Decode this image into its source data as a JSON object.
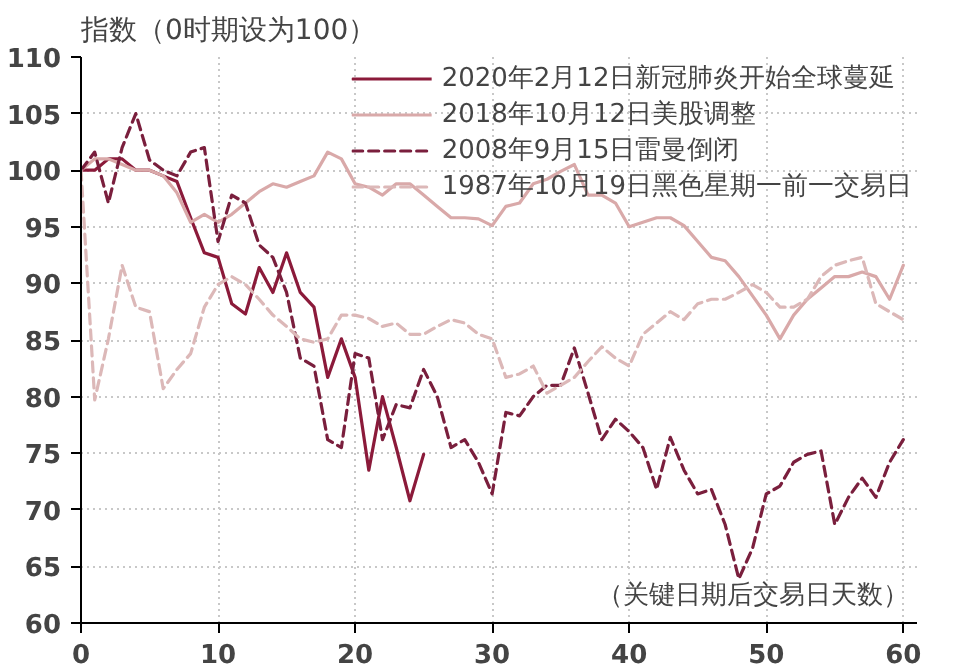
{
  "chart_data": {
    "type": "line",
    "title": "指数（0时期设为100）",
    "annotations": [
      "（关键日期后交易日天数）"
    ],
    "xlim": [
      0,
      61
    ],
    "xticks": [
      0,
      10,
      20,
      30,
      40,
      50,
      60
    ],
    "ylim": [
      60,
      110
    ],
    "yticks": [
      60,
      65,
      70,
      75,
      80,
      85,
      90,
      95,
      100,
      105,
      110
    ],
    "grid": true,
    "legend": "top right",
    "series": [
      {
        "name": "2020年2月12日新冠肺炎开始全球蔓延",
        "color": "#8b1a3a",
        "line_style": "solid",
        "x": [
          0,
          1,
          2,
          3,
          4,
          5,
          6,
          7,
          8,
          9,
          10,
          11,
          12,
          13,
          14,
          15,
          16,
          17,
          18,
          19,
          20,
          21,
          22,
          23,
          24,
          25
        ],
        "values": [
          100,
          100,
          101,
          101,
          100,
          100,
          99.5,
          99,
          95.8,
          92.7,
          92.3,
          88.2,
          87.3,
          91.4,
          89.2,
          92.7,
          89.2,
          87.9,
          81.7,
          85.1,
          81.7,
          73.5,
          80,
          75.5,
          70.8,
          74.9
        ]
      },
      {
        "name": "2018年10月12日美股调整",
        "color": "#d9a9a9",
        "line_style": "solid",
        "x": [
          0,
          1,
          2,
          3,
          4,
          5,
          6,
          7,
          8,
          9,
          10,
          11,
          12,
          13,
          14,
          15,
          16,
          17,
          18,
          19,
          20,
          21,
          22,
          23,
          24,
          25,
          26,
          27,
          28,
          29,
          30,
          31,
          32,
          33,
          34,
          35,
          36,
          37,
          38,
          39,
          40,
          41,
          42,
          43,
          44,
          45,
          46,
          47,
          48,
          49,
          50,
          51,
          52,
          53,
          54,
          55,
          56,
          57,
          58,
          59,
          60
        ],
        "values": [
          100,
          101,
          101,
          100.5,
          100,
          100,
          99.5,
          98,
          95.4,
          96.1,
          95.4,
          96.1,
          97.1,
          98.1,
          98.8,
          98.5,
          99,
          99.5,
          101.6,
          101,
          98.8,
          98.5,
          97.8,
          98.8,
          98.8,
          97.8,
          96.8,
          95.8,
          95.8,
          95.7,
          95.1,
          96.8,
          97.1,
          98.8,
          99.2,
          99.9,
          100.5,
          97.8,
          97.8,
          97.1,
          95,
          95.4,
          95.8,
          95.8,
          95.1,
          93.7,
          92.3,
          92,
          90.6,
          88.9,
          87.2,
          85.1,
          87.2,
          88.6,
          89.6,
          90.6,
          90.6,
          91,
          90.6,
          88.6,
          91.6
        ]
      },
      {
        "name": "2008年9月15日雷曼倒闭",
        "color": "#7a1f3d",
        "line_style": "dashed",
        "x": [
          0,
          1,
          2,
          3,
          4,
          5,
          6,
          7,
          8,
          9,
          10,
          11,
          12,
          13,
          14,
          15,
          16,
          17,
          18,
          19,
          20,
          21,
          22,
          23,
          24,
          25,
          26,
          27,
          28,
          29,
          30,
          31,
          32,
          33,
          34,
          35,
          36,
          37,
          38,
          39,
          40,
          41,
          42,
          43,
          44,
          45,
          46,
          47,
          48,
          49,
          50,
          51,
          52,
          53,
          54,
          55,
          56,
          57,
          58,
          59,
          60
        ],
        "values": [
          100,
          101.6,
          97.1,
          102,
          105,
          100.9,
          100,
          99.5,
          101.6,
          102,
          93.7,
          97.8,
          97.1,
          93.4,
          92.3,
          89.2,
          83.4,
          82.7,
          76.2,
          75.5,
          83.8,
          83.4,
          76.2,
          79.3,
          79,
          82.4,
          80,
          75.5,
          76.2,
          74.2,
          71.4,
          78.6,
          78.3,
          80,
          81,
          81,
          84.3,
          80.3,
          76.2,
          78,
          76.9,
          75.5,
          71.8,
          76.4,
          73.5,
          71.4,
          71.8,
          68.7,
          63.9,
          66.6,
          71.4,
          72.1,
          74.2,
          74.9,
          75.2,
          68.7,
          71.1,
          72.8,
          71.1,
          74.2,
          76.2
        ]
      },
      {
        "name": "1987年10月19日黑色星期一前一交易日",
        "color": "#dcb8b8",
        "line_style": "dashed",
        "x": [
          0,
          1,
          2,
          3,
          4,
          5,
          6,
          7,
          8,
          9,
          10,
          11,
          12,
          13,
          14,
          15,
          16,
          17,
          18,
          19,
          20,
          21,
          22,
          23,
          24,
          25,
          26,
          27,
          28,
          29,
          30,
          31,
          32,
          33,
          34,
          35,
          36,
          37,
          38,
          39,
          40,
          41,
          42,
          43,
          44,
          45,
          46,
          47,
          48,
          49,
          50,
          51,
          52,
          53,
          54,
          55,
          56,
          57,
          58,
          59,
          60
        ],
        "values": [
          100,
          79.7,
          85.1,
          91.6,
          87.9,
          87.5,
          80.7,
          82.4,
          83.8,
          87.9,
          89.9,
          90.6,
          89.9,
          88.6,
          87.2,
          86.2,
          85.1,
          84.8,
          85.1,
          87.2,
          87.2,
          86.9,
          86.2,
          86.5,
          85.5,
          85.5,
          86.2,
          86.8,
          86.5,
          85.5,
          85.1,
          81.7,
          82,
          82.7,
          80.3,
          81,
          81.7,
          83.1,
          84.4,
          83.4,
          82.7,
          85.5,
          86.5,
          87.5,
          86.8,
          88.2,
          88.6,
          88.6,
          89.2,
          89.9,
          89.2,
          87.9,
          87.9,
          88.6,
          90.6,
          91.6,
          92,
          92.3,
          88.2,
          87.5,
          86.8
        ]
      }
    ]
  }
}
